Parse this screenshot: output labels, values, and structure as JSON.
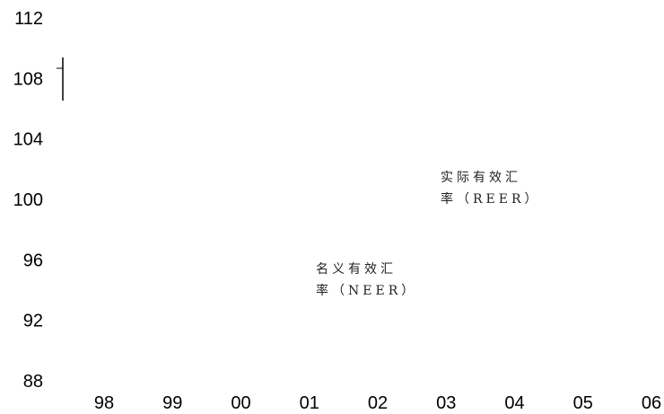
{
  "chart_data": {
    "type": "line",
    "title": "",
    "xlabel": "",
    "ylabel": "",
    "x_ticks": [
      "98",
      "99",
      "00",
      "01",
      "02",
      "03",
      "04",
      "05",
      "06"
    ],
    "y_ticks": [
      "112",
      "108",
      "104",
      "100",
      "96",
      "92",
      "88"
    ],
    "ylim": [
      88,
      112
    ],
    "grid": false,
    "series": [
      {
        "name": "实际有效汇率（REER）",
        "values": []
      },
      {
        "name": "名义有效汇率（NEER）",
        "values": []
      }
    ],
    "annotations": [
      {
        "line1": "实际有效汇",
        "line2": "率（REER）"
      },
      {
        "line1": "名义有效汇",
        "line2": "率（NEER）"
      }
    ]
  }
}
